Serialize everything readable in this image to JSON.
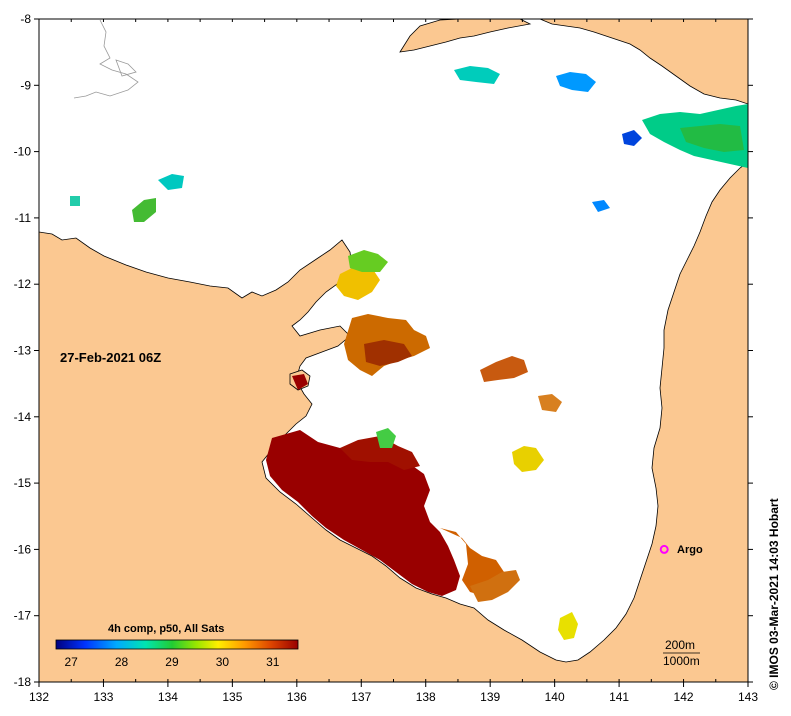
{
  "map": {
    "date_label": "27-Feb-2021 06Z",
    "credit": "© IMOS 03-Mar-2021 14:03 Hobart",
    "argo_label": "Argo",
    "x_ticks": [
      "132",
      "133",
      "134",
      "135",
      "136",
      "137",
      "138",
      "139",
      "140",
      "141",
      "142",
      "143"
    ],
    "y_ticks": [
      "-8",
      "-9",
      "-10",
      "-11",
      "-12",
      "-13",
      "-14",
      "-15",
      "-16",
      "-17",
      "-18"
    ],
    "x_range": [
      132,
      143
    ],
    "y_range": [
      -18,
      -8
    ],
    "land_color": "#fbc891",
    "colorbar": {
      "title": "4h comp, p50, All Sats",
      "ticks": [
        "27",
        "28",
        "29",
        "30",
        "31"
      ],
      "range": [
        26.7,
        31.5
      ],
      "colors": [
        "#00007f",
        "#0033ff",
        "#00aaff",
        "#00e5b0",
        "#22cc33",
        "#99e600",
        "#ffee00",
        "#ff9900",
        "#dd4400",
        "#990000"
      ]
    },
    "depth_contours": [
      "200m",
      "1000m"
    ],
    "argo_float": {
      "lon": 141.7,
      "lat": -16.0,
      "color": "#ff00ff"
    }
  }
}
